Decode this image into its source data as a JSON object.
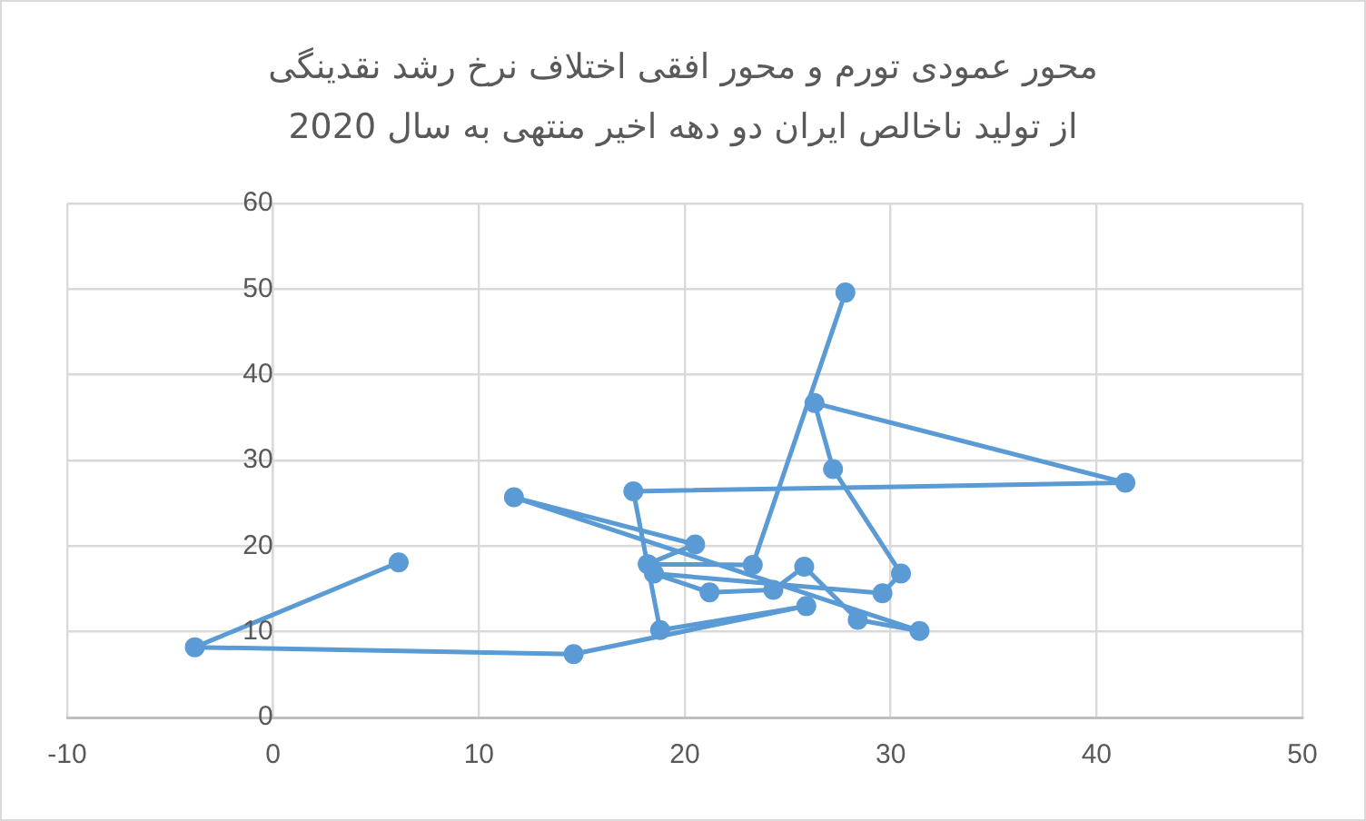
{
  "chart_data": {
    "type": "line",
    "title": "محور عمودی تورم و محور افقی اختلاف نرخ رشد نقدینگی\nاز تولید ناخالص ایران دو دهه اخیر منتهی به سال 2020",
    "x": [
      6.1,
      -3.8,
      14.6,
      25.9,
      18.8,
      17.5,
      41.4,
      26.3,
      27.2,
      30.5,
      29.6,
      18.5,
      21.2,
      24.3,
      25.8,
      28.4,
      31.4,
      11.7,
      20.5,
      18.2,
      23.3,
      27.8
    ],
    "values": [
      18.1,
      8.2,
      7.4,
      13.0,
      10.2,
      26.4,
      27.4,
      36.7,
      29.0,
      16.8,
      14.5,
      16.8,
      14.6,
      14.9,
      17.6,
      11.4,
      10.1,
      25.7,
      20.2,
      17.9,
      17.8,
      49.6
    ],
    "color": "#5b9bd5",
    "marker": "circle",
    "line_style": "solid",
    "xlim": [
      -10,
      50
    ],
    "xticks": [
      -10,
      0,
      10,
      20,
      30,
      40,
      50
    ],
    "ylim": [
      0,
      60
    ],
    "yticks": [
      0,
      10,
      20,
      30,
      40,
      50,
      60
    ],
    "grid": true
  }
}
